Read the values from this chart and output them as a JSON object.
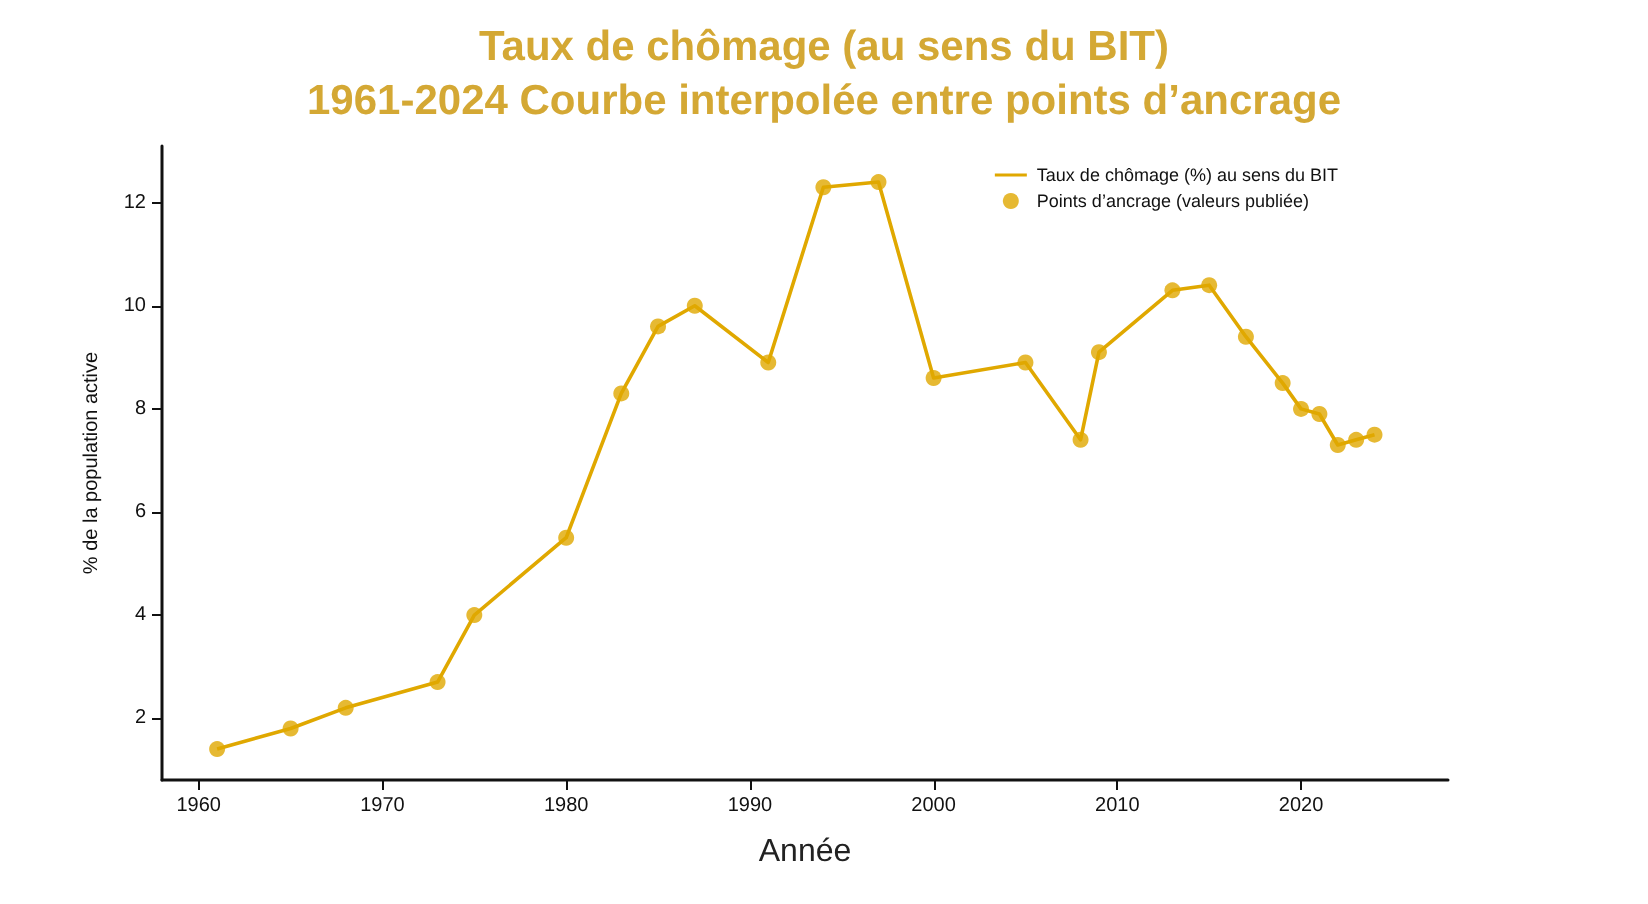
{
  "chart_data": {
    "type": "line",
    "title": "Taux de chômage (au sens du BIT)",
    "subtitle": "1961-2024 Courbe interpolée entre points d’ancrage",
    "xlabel": "Année",
    "ylabel": "% de la population active",
    "x": [
      1961,
      1965,
      1968,
      1973,
      1975,
      1980,
      1983,
      1985,
      1987,
      1991,
      1994,
      1997,
      2000,
      2005,
      2008,
      2009,
      2013,
      2015,
      2017,
      2019,
      2020,
      2021,
      2022,
      2023,
      2024
    ],
    "series": [
      {
        "name": "Taux de chômage (%) au sens du BIT",
        "marker": "none",
        "color": "#e0a800",
        "values": [
          1.4,
          1.8,
          2.2,
          2.7,
          4.0,
          5.5,
          8.3,
          9.6,
          10.0,
          8.9,
          12.3,
          12.4,
          8.6,
          8.9,
          7.4,
          9.1,
          10.3,
          10.4,
          9.4,
          8.5,
          8.0,
          7.9,
          7.3,
          7.4,
          7.5
        ]
      },
      {
        "name": "Points d’ancrage (valeurs publiée)",
        "type": "scatter",
        "marker": "circle",
        "color": "#e0a800",
        "values": [
          1.4,
          1.8,
          2.2,
          2.7,
          4.0,
          5.5,
          8.3,
          9.6,
          10.0,
          8.9,
          12.3,
          12.4,
          8.6,
          8.9,
          7.4,
          9.1,
          10.3,
          10.4,
          9.4,
          8.5,
          8.0,
          7.9,
          7.3,
          7.4,
          7.5
        ]
      }
    ],
    "xlim": [
      1958,
      2028
    ],
    "xticks": [
      1960,
      1970,
      1980,
      1990,
      2000,
      2010,
      2020
    ],
    "ylim": [
      0.8,
      13.1
    ],
    "yticks": [
      2,
      4,
      6,
      8,
      10,
      12
    ],
    "grid": false,
    "legend": "top right"
  }
}
